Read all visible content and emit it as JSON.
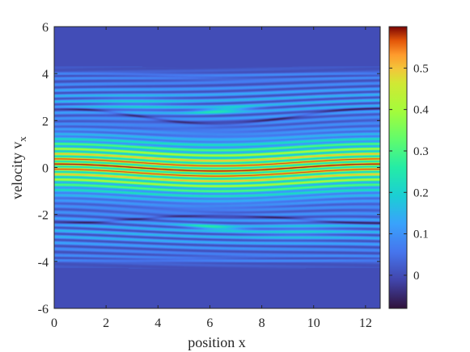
{
  "chart_data": {
    "type": "heatmap",
    "title": "",
    "xlabel": "position x",
    "ylabel_main": "velocity v",
    "ylabel_sub": "x",
    "xlim": [
      0,
      12.566
    ],
    "ylim": [
      -6,
      6
    ],
    "x_ticks": [
      0,
      2,
      4,
      6,
      8,
      10,
      12
    ],
    "y_ticks": [
      -6,
      -4,
      -2,
      0,
      2,
      4,
      6
    ],
    "x_tick_labels": [
      "0",
      "2",
      "4",
      "6",
      "8",
      "10",
      "12"
    ],
    "y_tick_labels": [
      "-6",
      "-4",
      "-2",
      "0",
      "2",
      "4",
      "6"
    ],
    "colorbar": {
      "colormap": "turbo",
      "range": [
        -0.08,
        0.6
      ],
      "ticks": [
        0,
        0.1,
        0.2,
        0.3,
        0.4,
        0.5
      ],
      "tick_labels": [
        "0",
        "0.1",
        "0.2",
        "0.3",
        "0.4",
        "0.5"
      ]
    },
    "field_description": {
      "background_value": 0.0,
      "core_peak_value": 0.6,
      "core_halfwidth_v": 1.1,
      "filament_spacing_v": 0.22,
      "separatrix_halfwidth_v": 2.2,
      "wave_amplitude_v": 0.15,
      "edge_band_v": 3.9
    }
  }
}
